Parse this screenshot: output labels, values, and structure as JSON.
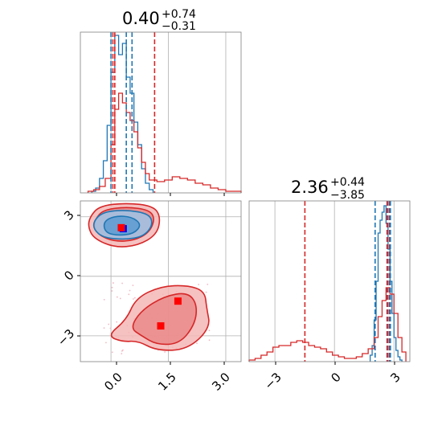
{
  "colors": {
    "blue": "#1f77b4",
    "red": "#d62728",
    "grid": "#b0b0b0",
    "frame": "#808080",
    "red_fill_outer": "#f4b6b6",
    "red_fill_inner": "#ea8a8a",
    "blue_fill_outer": "#9ec3e6",
    "blue_fill_inner": "#5d9bd1"
  },
  "chart_data": {
    "type": "corner",
    "panels": [
      {
        "name": "marginal-x",
        "type": "histogram",
        "title": {
          "median": "0.40",
          "plus": "+0.74",
          "minus": "−0.31"
        },
        "xlim": [
          -0.8,
          3.4
        ],
        "xticks": [
          0.0,
          1.5,
          3.0
        ],
        "xtick_labels": [
          "0.0",
          "1.5",
          "3.0"
        ],
        "ylim": [
          0,
          1.0
        ],
        "series": [
          {
            "color": "blue",
            "edges": [
              -0.5,
              -0.4,
              -0.3,
              -0.2,
              -0.1,
              0.0,
              0.1,
              0.2,
              0.3,
              0.4,
              0.5,
              0.6,
              0.7,
              0.8,
              0.9,
              1.0,
              1.1
            ],
            "heights": [
              0.01,
              0.03,
              0.09,
              0.2,
              0.42,
              0.75,
              0.98,
              0.86,
              0.93,
              0.72,
              0.62,
              0.44,
              0.3,
              0.15,
              0.06,
              0.02
            ]
          },
          {
            "color": "red",
            "edges": [
              -0.6,
              -0.45,
              -0.3,
              -0.15,
              0.0,
              0.1,
              0.2,
              0.3,
              0.4,
              0.5,
              0.6,
              0.7,
              0.8,
              0.9,
              1.0,
              1.2,
              1.4,
              1.6,
              1.8,
              2.0,
              2.2,
              2.4,
              2.6,
              2.8,
              3.0,
              3.2,
              3.4
            ],
            "heights": [
              0.01,
              0.02,
              0.04,
              0.09,
              0.3,
              0.52,
              0.62,
              0.56,
              0.5,
              0.45,
              0.38,
              0.28,
              0.19,
              0.12,
              0.08,
              0.07,
              0.08,
              0.1,
              0.09,
              0.08,
              0.06,
              0.05,
              0.03,
              0.02,
              0.01,
              0.01
            ]
          }
        ],
        "vlines": [
          {
            "color": "blue",
            "x": 0.0
          },
          {
            "color": "blue",
            "x": 0.4
          },
          {
            "color": "blue",
            "x": 0.55
          },
          {
            "color": "red",
            "x": 0.05
          },
          {
            "color": "red",
            "x": 0.1
          },
          {
            "color": "red",
            "x": 1.14
          }
        ]
      },
      {
        "name": "joint",
        "type": "contour",
        "xlim": [
          -0.8,
          3.4
        ],
        "ylim": [
          -4.3,
          3.8
        ],
        "xticks": [
          0.0,
          1.5,
          3.0
        ],
        "xtick_labels": [
          "0.0",
          "1.5",
          "3.0"
        ],
        "yticks": [
          -3,
          0,
          3
        ],
        "ytick_labels": [
          "−3",
          "0",
          "3"
        ],
        "contours": [
          {
            "color": "red",
            "level": "outer",
            "points": [
              [
                -0.55,
                3.0
              ],
              [
                -0.3,
                3.55
              ],
              [
                0.4,
                3.7
              ],
              [
                1.1,
                3.55
              ],
              [
                1.3,
                3.0
              ],
              [
                1.2,
                2.1
              ],
              [
                0.7,
                1.55
              ],
              [
                0.1,
                1.45
              ],
              [
                -0.45,
                1.9
              ],
              [
                -0.6,
                2.5
              ]
            ]
          },
          {
            "color": "red",
            "level": "inner",
            "points": [
              [
                -0.4,
                2.9
              ],
              [
                -0.2,
                3.35
              ],
              [
                0.4,
                3.5
              ],
              [
                1.0,
                3.35
              ],
              [
                1.15,
                2.9
              ],
              [
                1.0,
                2.2
              ],
              [
                0.6,
                1.8
              ],
              [
                0.1,
                1.75
              ],
              [
                -0.3,
                2.05
              ],
              [
                -0.45,
                2.5
              ]
            ]
          },
          {
            "color": "blue",
            "level": "outer",
            "points": [
              [
                -0.45,
                2.8
              ],
              [
                -0.2,
                3.25
              ],
              [
                0.4,
                3.35
              ],
              [
                1.0,
                3.15
              ],
              [
                1.1,
                2.6
              ],
              [
                0.85,
                2.0
              ],
              [
                0.35,
                1.85
              ],
              [
                -0.2,
                1.95
              ],
              [
                -0.45,
                2.35
              ]
            ]
          },
          {
            "color": "blue",
            "level": "inner",
            "points": [
              [
                -0.2,
                2.75
              ],
              [
                0.1,
                3.05
              ],
              [
                0.55,
                3.0
              ],
              [
                0.8,
                2.6
              ],
              [
                0.6,
                2.15
              ],
              [
                0.2,
                2.05
              ],
              [
                -0.15,
                2.2
              ]
            ]
          },
          {
            "color": "red",
            "level": "outer",
            "points": [
              [
                -0.1,
                -3.0
              ],
              [
                0.4,
                -2.2
              ],
              [
                0.65,
                -1.1
              ],
              [
                1.3,
                -0.5
              ],
              [
                2.0,
                -0.45
              ],
              [
                2.45,
                -0.75
              ],
              [
                2.5,
                -1.6
              ],
              [
                2.6,
                -2.6
              ],
              [
                2.0,
                -3.7
              ],
              [
                1.2,
                -3.75
              ],
              [
                0.7,
                -3.25
              ],
              [
                0.3,
                -3.3
              ]
            ]
          },
          {
            "color": "red",
            "level": "inner",
            "points": [
              [
                0.5,
                -2.6
              ],
              [
                0.8,
                -1.7
              ],
              [
                1.4,
                -1.0
              ],
              [
                2.0,
                -0.8
              ],
              [
                2.25,
                -1.4
              ],
              [
                2.2,
                -2.4
              ],
              [
                1.8,
                -3.4
              ],
              [
                1.2,
                -3.45
              ],
              [
                0.8,
                -3.0
              ]
            ]
          }
        ],
        "markers": [
          {
            "color": "blue",
            "x": 0.32,
            "y": 2.4
          },
          {
            "color": "red",
            "x": 0.27,
            "y": 2.45
          },
          {
            "color": "red",
            "x": 1.75,
            "y": -1.25
          },
          {
            "color": "red",
            "x": 1.3,
            "y": -2.5
          }
        ]
      },
      {
        "name": "marginal-y",
        "type": "histogram",
        "title": {
          "median": "2.36",
          "plus": "+0.44",
          "minus": "−3.85"
        },
        "xlim": [
          -4.3,
          3.8
        ],
        "xticks": [
          -3,
          0,
          3
        ],
        "xtick_labels": [
          "−3",
          "0",
          "3"
        ],
        "ylim": [
          0,
          1.0
        ],
        "series": [
          {
            "color": "blue",
            "edges": [
              1.8,
              1.9,
              2.0,
              2.1,
              2.2,
              2.3,
              2.4,
              2.5,
              2.6,
              2.7,
              2.8,
              2.9,
              3.0,
              3.1,
              3.2,
              3.3,
              3.4
            ],
            "heights": [
              0.04,
              0.1,
              0.26,
              0.5,
              0.8,
              0.88,
              0.93,
              0.97,
              0.86,
              0.7,
              0.5,
              0.3,
              0.15,
              0.07,
              0.03,
              0.01
            ]
          },
          {
            "color": "red",
            "edges": [
              -4.3,
              -4.0,
              -3.7,
              -3.4,
              -3.1,
              -2.8,
              -2.5,
              -2.2,
              -1.9,
              -1.6,
              -1.3,
              -1.0,
              -0.7,
              -0.4,
              -0.1,
              0.2,
              0.5,
              0.8,
              1.1,
              1.4,
              1.7,
              2.0,
              2.2,
              2.4,
              2.6,
              2.8,
              3.0,
              3.2,
              3.4,
              3.6
            ],
            "heights": [
              0.01,
              0.02,
              0.04,
              0.06,
              0.09,
              0.1,
              0.1,
              0.12,
              0.13,
              0.12,
              0.1,
              0.09,
              0.08,
              0.06,
              0.04,
              0.03,
              0.02,
              0.02,
              0.03,
              0.05,
              0.08,
              0.15,
              0.28,
              0.38,
              0.46,
              0.42,
              0.3,
              0.15,
              0.06
            ]
          }
        ],
        "vlines": [
          {
            "color": "red",
            "x": -1.49
          },
          {
            "color": "blue",
            "x": 2.05
          },
          {
            "color": "blue",
            "x": 2.7
          },
          {
            "color": "red",
            "x": 2.65
          },
          {
            "color": "red",
            "x": 2.78
          },
          {
            "color": "blue",
            "x": 2.82
          }
        ]
      }
    ],
    "grid": true
  }
}
